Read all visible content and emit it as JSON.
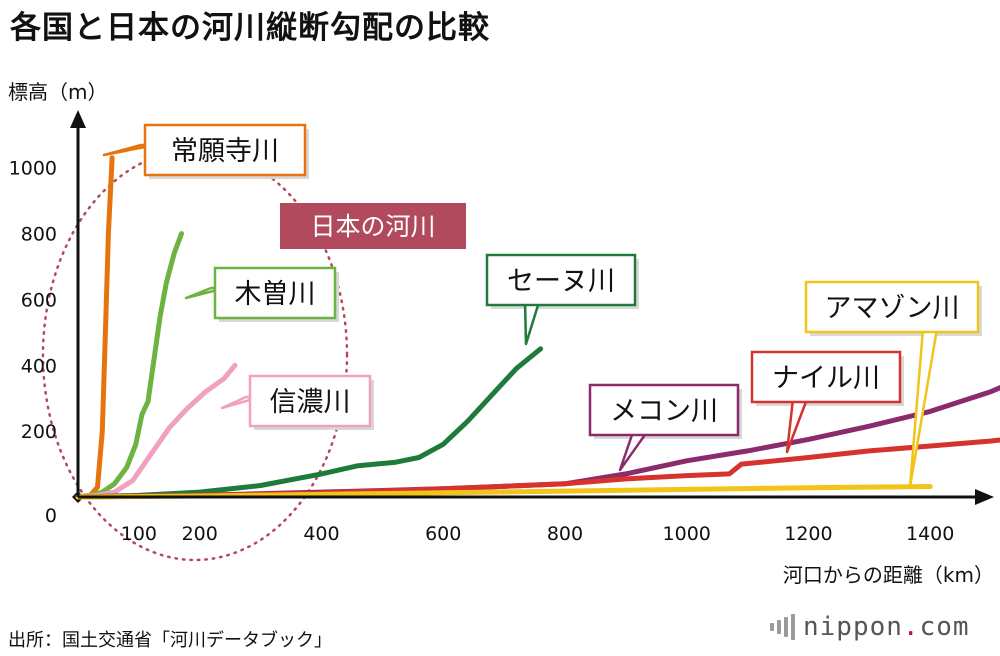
{
  "title": "各国と日本の河川縦断勾配の比較",
  "source": "出所：国土交通省「河川データブック」",
  "logo": {
    "name": "nippon",
    "dot": ".",
    "tld": "com"
  },
  "chart_data": {
    "type": "line",
    "title": "各国と日本の河川縦断勾配の比較",
    "xlabel": "河口からの距離（km）",
    "ylabel": "標高（m）",
    "xlim": [
      0,
      1550
    ],
    "ylim": [
      0,
      1100
    ],
    "x_ticks": [
      "100",
      "200",
      "400",
      "600",
      "800",
      "1000",
      "1200",
      "1400"
    ],
    "x_tick_values": [
      100,
      200,
      400,
      600,
      800,
      1000,
      1200,
      1400
    ],
    "y_ticks": [
      "0",
      "200",
      "400",
      "600",
      "800",
      "1000"
    ],
    "y_tick_values": [
      0,
      200,
      400,
      600,
      800,
      1000
    ],
    "group_label": "日本の河川",
    "series": [
      {
        "name": "常願寺川",
        "color": "#e8730e",
        "x": [
          0,
          20,
          32,
          40,
          45,
          50,
          56
        ],
        "y": [
          0,
          5,
          30,
          200,
          500,
          800,
          1030
        ]
      },
      {
        "name": "木曽川",
        "color": "#6db33f",
        "x": [
          0,
          20,
          40,
          60,
          80,
          95,
          105,
          115,
          125,
          135,
          145,
          158,
          170
        ],
        "y": [
          0,
          5,
          15,
          40,
          90,
          160,
          250,
          290,
          420,
          550,
          650,
          740,
          800
        ]
      },
      {
        "name": "信濃川",
        "color": "#f0a0c0",
        "x": [
          0,
          30,
          60,
          90,
          120,
          150,
          180,
          210,
          240,
          258
        ],
        "y": [
          0,
          5,
          15,
          50,
          130,
          210,
          270,
          320,
          360,
          400
        ]
      },
      {
        "name": "セーヌ川",
        "color": "#1e7b3a",
        "x": [
          0,
          100,
          200,
          300,
          400,
          460,
          520,
          560,
          600,
          640,
          680,
          720,
          760
        ],
        "y": [
          0,
          5,
          15,
          35,
          70,
          95,
          105,
          120,
          160,
          230,
          310,
          390,
          450
        ]
      },
      {
        "name": "メコン川",
        "color": "#8b2b6b",
        "x": [
          0,
          200,
          400,
          600,
          800,
          900,
          1000,
          1100,
          1200,
          1300,
          1400,
          1500,
          1550
        ],
        "y": [
          0,
          5,
          15,
          25,
          40,
          70,
          110,
          140,
          175,
          215,
          260,
          320,
          360
        ]
      },
      {
        "name": "ナイル川",
        "color": "#d6322e",
        "x": [
          0,
          200,
          400,
          600,
          800,
          900,
          1000,
          1070,
          1090,
          1200,
          1300,
          1400,
          1500,
          1550
        ],
        "y": [
          0,
          5,
          12,
          25,
          40,
          55,
          65,
          70,
          100,
          120,
          140,
          155,
          170,
          180
        ]
      },
      {
        "name": "アマゾン川",
        "color": "#f0c419",
        "x": [
          0,
          200,
          400,
          600,
          800,
          1000,
          1200,
          1400
        ],
        "y": [
          0,
          3,
          8,
          13,
          18,
          23,
          28,
          32
        ]
      }
    ]
  }
}
